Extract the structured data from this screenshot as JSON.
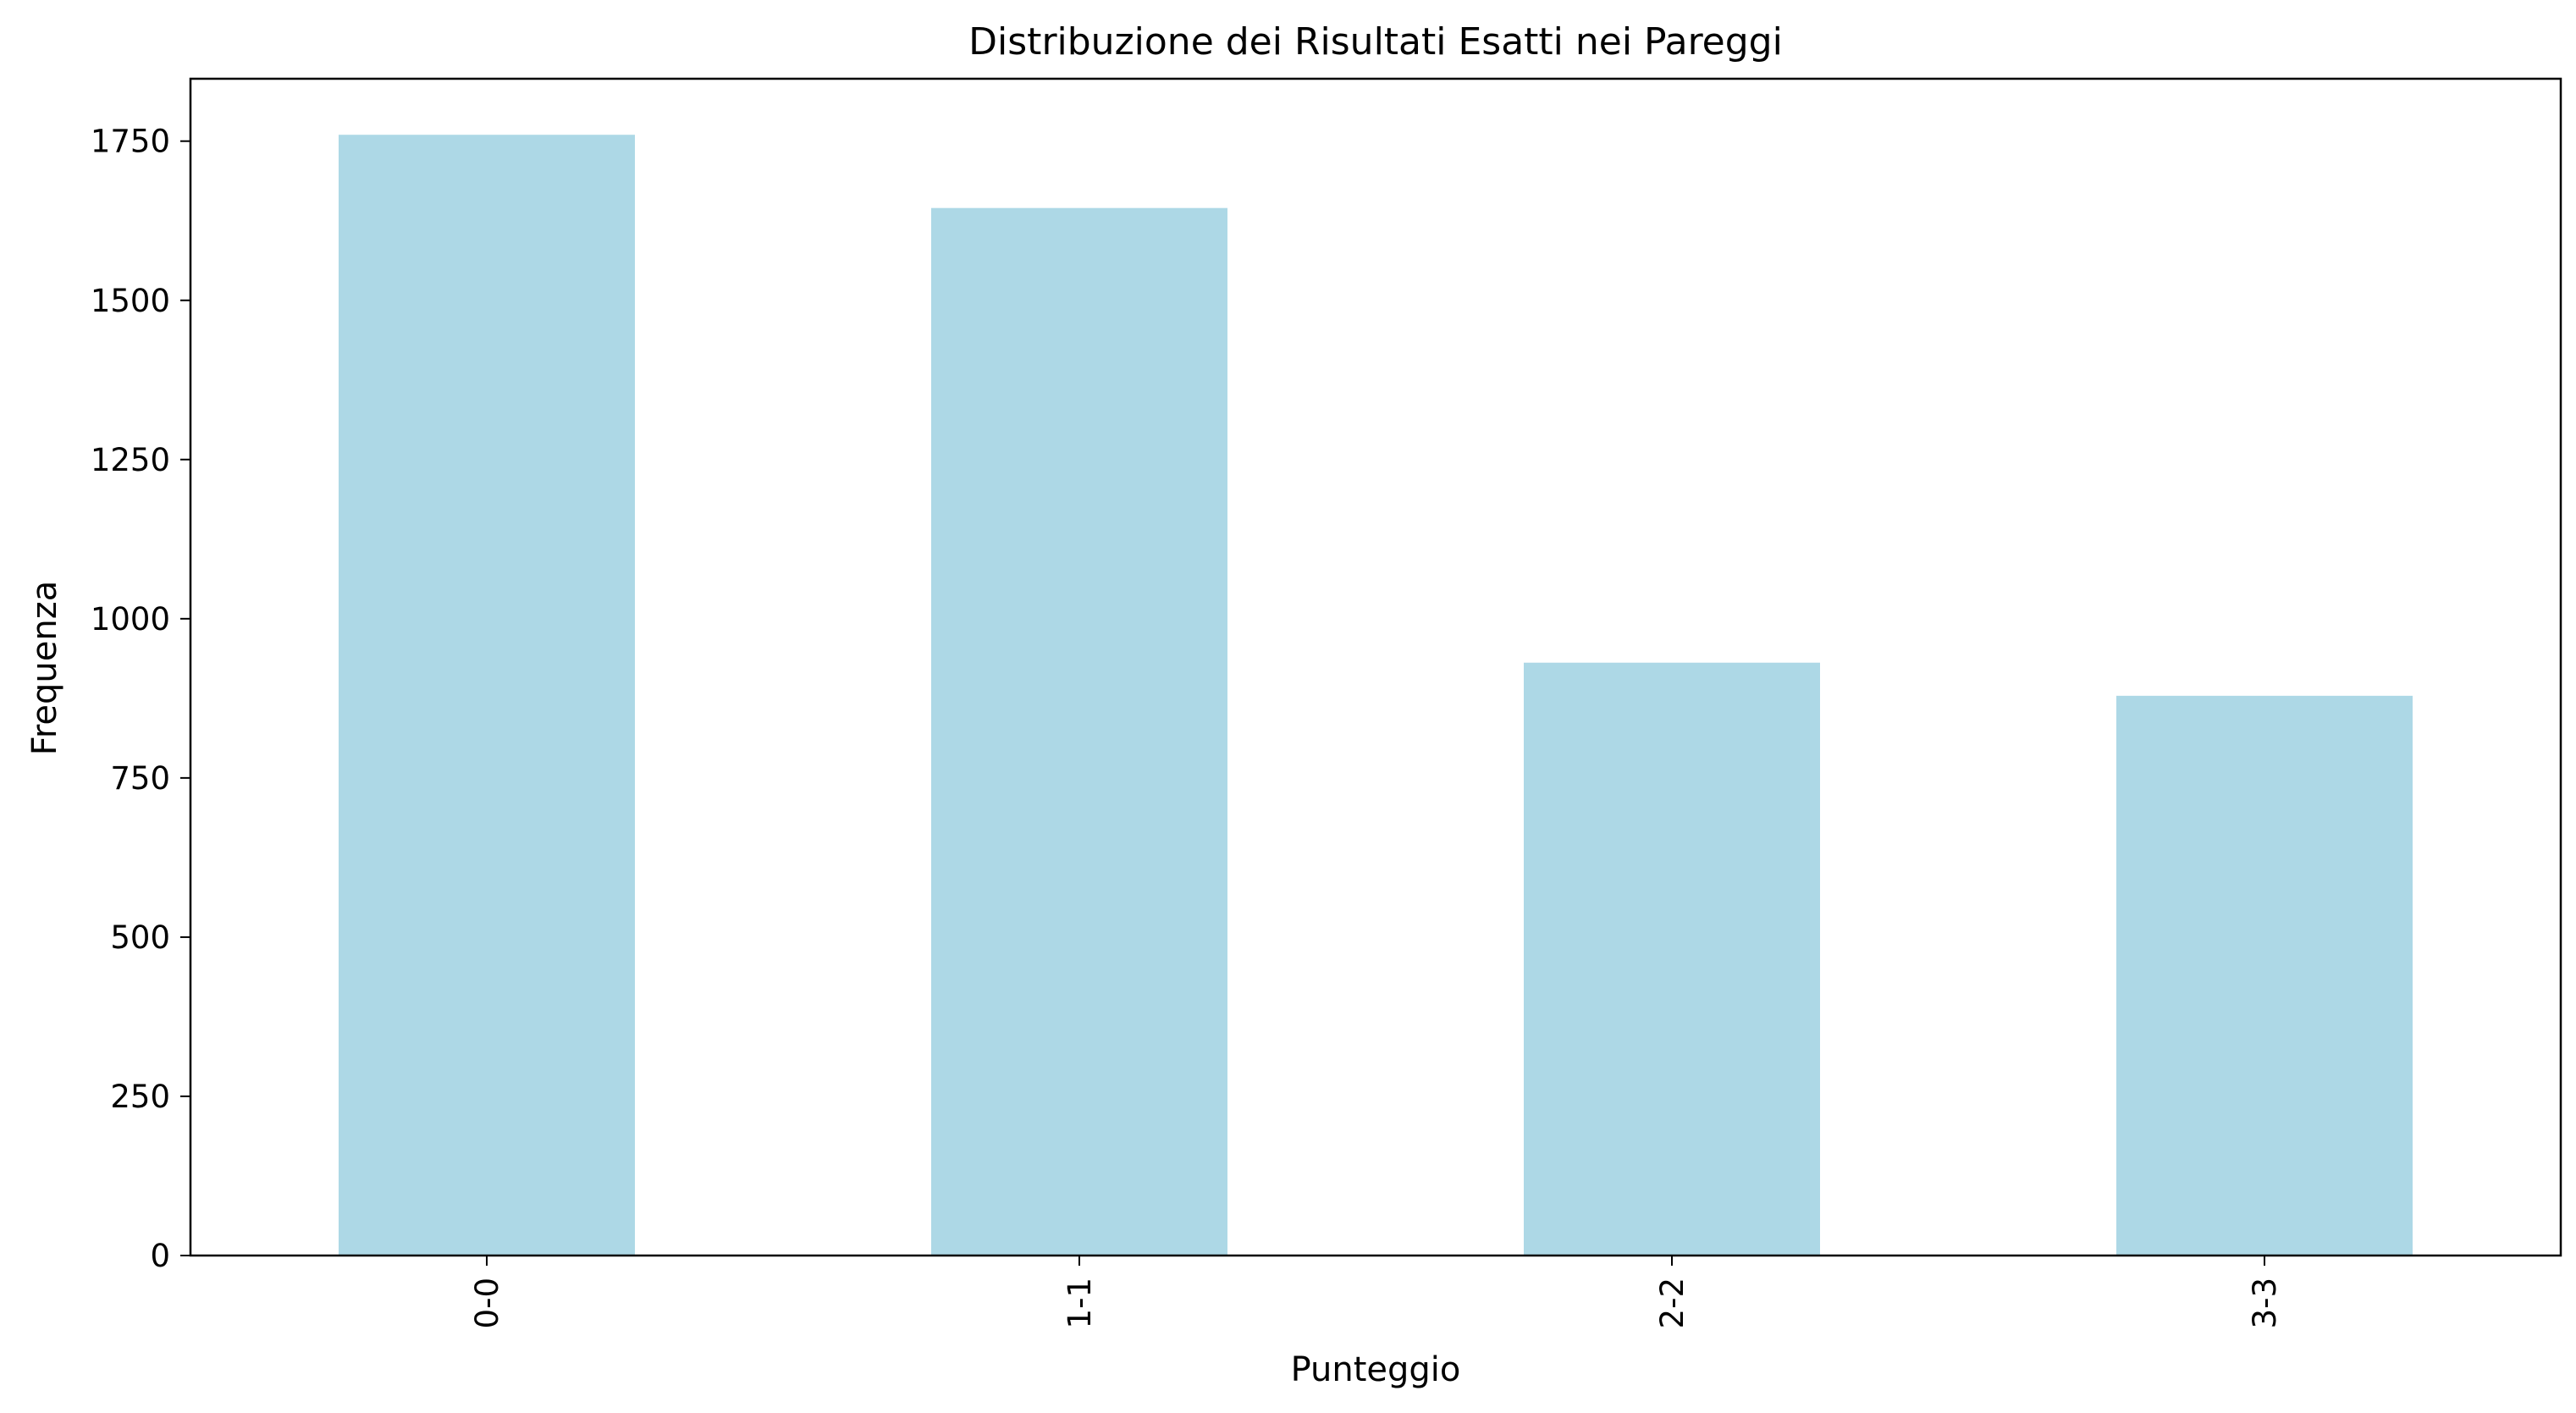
{
  "chart_data": {
    "type": "bar",
    "title": "Distribuzione dei Risultati Esatti nei Pareggi",
    "xlabel": "Punteggio",
    "ylabel": "Frequenza",
    "categories": [
      "0-0",
      "1-1",
      "2-2",
      "3-3"
    ],
    "values": [
      1760,
      1645,
      931,
      879
    ],
    "ylim": [
      0,
      1848
    ],
    "yticks": [
      0,
      250,
      500,
      750,
      1000,
      1250,
      1500,
      1750
    ],
    "xtick_rotation": "vertical",
    "grid": false,
    "legend": "none",
    "bar_color": "#add8e6"
  }
}
